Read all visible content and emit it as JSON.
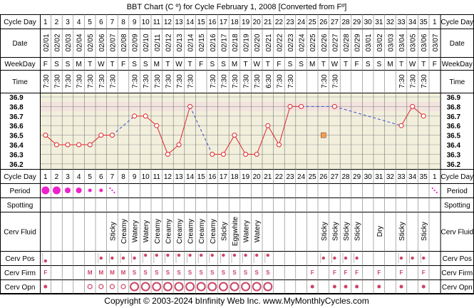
{
  "title": "BBT Chart (C º) for Cycle February 1, 2008  [Converted from Fº]",
  "copyright": "Copyright © 2003-2024 bInfinity Web Inc.    www.MyMonthlyCycles.com",
  "row_labels": {
    "cycle_day": "Cycle Day",
    "date": "Date",
    "weekday": "WeekDay",
    "time": "Time",
    "period": "Period",
    "spotting": "Spotting",
    "cerv_fluid": "Cerv Fluid",
    "cerv_pos": "Cerv Pos",
    "cerv_firm": "Cerv Firm",
    "cerv_opn": "Cerv Opn"
  },
  "colors": {
    "grid_bg": "#F2F0DC",
    "highlight": "#F2E3DE",
    "line": "#E0242C",
    "dashed": "#3A4FD0",
    "marker": "#CC4466",
    "period": "#EE22CC",
    "orange": "#F0A050"
  },
  "chart_data": {
    "type": "line",
    "ylabel": "",
    "ylim": [
      36.15,
      36.95
    ],
    "y_ticks": [
      "36.9",
      "36.8",
      "36.7",
      "36.6",
      "36.5",
      "36.4",
      "36.3",
      "36.2"
    ],
    "cycle_days": [
      "1",
      "2",
      "3",
      "4",
      "5",
      "6",
      "7",
      "8",
      "9",
      "10",
      "11",
      "12",
      "13",
      "14",
      "15",
      "16",
      "17",
      "18",
      "19",
      "20",
      "21",
      "22",
      "23",
      "24",
      "25",
      "26",
      "27",
      "28",
      "29",
      "30",
      "31",
      "32",
      "33",
      "34",
      "35",
      "1"
    ],
    "dates": [
      "02/01",
      "02/02",
      "02/03",
      "02/04",
      "02/05",
      "02/06",
      "02/07",
      "02/08",
      "02/09",
      "02/10",
      "02/11",
      "02/12",
      "02/13",
      "02/14",
      "02/15",
      "02/16",
      "02/17",
      "02/18",
      "02/19",
      "02/20",
      "02/21",
      "02/22",
      "02/23",
      "02/24",
      "02/25",
      "02/26",
      "02/27",
      "02/28",
      "02/29",
      "03/01",
      "03/02",
      "03/03",
      "03/04",
      "03/05",
      "03/06",
      "03/07"
    ],
    "weekdays": [
      "F",
      "S",
      "S",
      "M",
      "T",
      "W",
      "T",
      "F",
      "S",
      "S",
      "M",
      "T",
      "W",
      "T",
      "F",
      "S",
      "S",
      "M",
      "T",
      "W",
      "T",
      "F",
      "S",
      "S",
      "M",
      "T",
      "W",
      "T",
      "F",
      "S",
      "S",
      "M",
      "T",
      "W",
      "T",
      "F"
    ],
    "times": [
      "7:30",
      "7:30",
      "7:30",
      "7:30",
      "7:30",
      "7:30",
      "7:30",
      "",
      "7:30",
      "7:30",
      "7:30",
      "7:30",
      "7:30",
      "7:30",
      "",
      "7:30",
      "7:30",
      "7:30",
      "7:30",
      "7:30",
      "6:30",
      "7:30",
      "7:30",
      "",
      "",
      "7:30",
      "7:30",
      "",
      "",
      "",
      "",
      "",
      "7:30",
      "7:30",
      "7:30",
      ""
    ],
    "temps": [
      36.5,
      36.4,
      36.4,
      36.4,
      36.4,
      36.5,
      36.5,
      null,
      36.7,
      36.7,
      36.6,
      36.3,
      36.4,
      36.8,
      null,
      36.3,
      36.3,
      36.5,
      36.3,
      36.3,
      36.6,
      36.4,
      36.8,
      36.8,
      null,
      null,
      36.8,
      null,
      null,
      null,
      null,
      null,
      36.6,
      36.8,
      36.7,
      null
    ],
    "orange_marker": {
      "day_index": 25,
      "value": 36.5
    },
    "period": [
      "big",
      "big",
      "med",
      "med",
      "small",
      "small",
      "dots",
      "",
      "",
      "",
      "",
      "",
      "",
      "",
      "",
      "",
      "",
      "",
      "",
      "",
      "",
      "",
      "",
      "",
      "",
      "",
      "",
      "",
      "",
      "",
      "",
      "",
      "",
      "",
      "",
      "dots"
    ],
    "cerv_fluid": [
      "",
      "",
      "",
      "",
      "",
      "",
      "Sticky",
      "Creamy",
      "Watery",
      "Watery",
      "Creamy",
      "Creamy",
      "Creamy",
      "Creamy",
      "Creamy",
      "Creamy",
      "Sticky",
      "Eggwhite",
      "Watery",
      "Watery",
      "",
      "",
      "",
      "",
      "",
      "Sticky",
      "Sticky",
      "Sticky",
      "Sticky",
      "",
      "Dry",
      "",
      "Sticky",
      "",
      "Sticky",
      ""
    ],
    "cerv_pos": [
      "low",
      "",
      "",
      "",
      "",
      "mid",
      "mid",
      "mid",
      "mid",
      "high",
      "high",
      "high",
      "high",
      "high",
      "high",
      "high",
      "high",
      "high",
      "high",
      "high",
      "high",
      "",
      "",
      "",
      "",
      "mid",
      "mid",
      "mid",
      "mid",
      "",
      "",
      "",
      "mid",
      "mid",
      "mid",
      ""
    ],
    "cerv_firm": [
      "F",
      "",
      "",
      "",
      "M",
      "M",
      "M",
      "M",
      "S",
      "S",
      "S",
      "S",
      "S",
      "S",
      "S",
      "S",
      "S",
      "S",
      "S",
      "S",
      "S",
      "",
      "",
      "",
      "F",
      "",
      "F",
      "F",
      "F",
      "",
      "F",
      "",
      "F",
      "",
      "F",
      ""
    ],
    "cerv_opn": [
      "dot",
      "",
      "",
      "",
      "o",
      "o",
      "o",
      "o",
      "O",
      "O",
      "O",
      "O",
      "O",
      "O",
      "O",
      "O",
      "O",
      "O",
      "O",
      "O",
      "O",
      "",
      "",
      "",
      "dot",
      "",
      "dot",
      "dot",
      "dot",
      "",
      "dot",
      "",
      "dot",
      "",
      "dot",
      ""
    ]
  }
}
